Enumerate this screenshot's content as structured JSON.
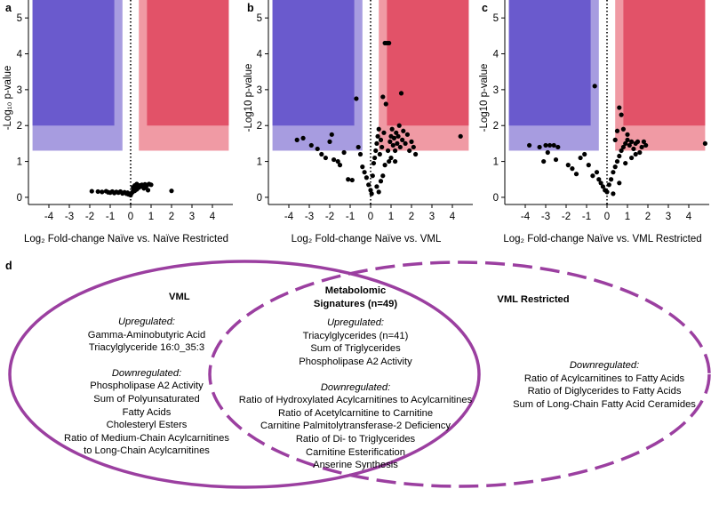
{
  "chart_data": [
    {
      "panel": "a",
      "type": "scatter",
      "title": "",
      "xlabel": "Log₂ Fold-change Naïve vs. Naïve Restricted",
      "ylabel": "-Log₁₀ p-value",
      "xlim": [
        -5,
        5
      ],
      "ylim": [
        -0.2,
        5.5
      ],
      "xticks": [
        "-4",
        "-3",
        "-2",
        "-1",
        "0",
        "1",
        "2",
        "3",
        "4"
      ],
      "yticks": [
        "0",
        "1",
        "2",
        "3",
        "4",
        "5"
      ],
      "colors": {
        "down_dark": "#6a5acd",
        "down_light": "#a79ce0",
        "up_dark": "#e25268",
        "up_light": "#f09aa4"
      },
      "points": [
        [
          -1.9,
          0.17
        ],
        [
          -1.6,
          0.16
        ],
        [
          -1.4,
          0.15
        ],
        [
          -1.2,
          0.17
        ],
        [
          -1.1,
          0.14
        ],
        [
          -1.0,
          0.13
        ],
        [
          -0.9,
          0.16
        ],
        [
          -0.8,
          0.12
        ],
        [
          -0.7,
          0.15
        ],
        [
          -0.6,
          0.13
        ],
        [
          -0.5,
          0.16
        ],
        [
          -0.4,
          0.11
        ],
        [
          -0.3,
          0.14
        ],
        [
          -0.2,
          0.1
        ],
        [
          -0.15,
          0.13
        ],
        [
          -0.1,
          0.08
        ],
        [
          0.0,
          0.06
        ],
        [
          0.05,
          0.12
        ],
        [
          0.1,
          0.15
        ],
        [
          0.15,
          0.2
        ],
        [
          0.2,
          0.18
        ],
        [
          0.25,
          0.25
        ],
        [
          0.3,
          0.22
        ],
        [
          0.35,
          0.3
        ],
        [
          0.4,
          0.27
        ],
        [
          0.45,
          0.33
        ],
        [
          0.5,
          0.3
        ],
        [
          0.55,
          0.35
        ],
        [
          0.6,
          0.32
        ],
        [
          0.7,
          0.36
        ],
        [
          0.8,
          0.34
        ],
        [
          0.9,
          0.37
        ],
        [
          1.0,
          0.35
        ],
        [
          0.3,
          0.37
        ],
        [
          0.2,
          0.33
        ],
        [
          0.12,
          0.28
        ],
        [
          0.65,
          0.25
        ],
        [
          0.75,
          0.3
        ],
        [
          0.85,
          0.2
        ],
        [
          2.0,
          0.18
        ]
      ]
    },
    {
      "panel": "b",
      "type": "scatter",
      "title": "",
      "xlabel": "Log₂ Fold-change Naïve vs. VML",
      "ylabel": "-Log10 p-value",
      "xlim": [
        -5,
        5
      ],
      "ylim": [
        -0.2,
        5.5
      ],
      "xticks": [
        "-4",
        "-3",
        "-2",
        "-1",
        "0",
        "1",
        "2",
        "3",
        "4"
      ],
      "yticks": [
        "0",
        "1",
        "2",
        "3",
        "4",
        "5"
      ],
      "colors": {
        "down_dark": "#6a5acd",
        "down_light": "#a79ce0",
        "up_dark": "#e25268",
        "up_light": "#f09aa4"
      },
      "points": [
        [
          -3.6,
          1.6
        ],
        [
          -3.3,
          1.65
        ],
        [
          -2.9,
          1.45
        ],
        [
          -2.6,
          1.35
        ],
        [
          -2.4,
          1.2
        ],
        [
          -2.2,
          1.1
        ],
        [
          -2.0,
          1.55
        ],
        [
          -1.9,
          1.75
        ],
        [
          -1.8,
          1.05
        ],
        [
          -1.6,
          1.0
        ],
        [
          -1.5,
          0.9
        ],
        [
          -1.3,
          1.25
        ],
        [
          -1.1,
          0.5
        ],
        [
          -0.9,
          0.48
        ],
        [
          -0.7,
          2.75
        ],
        [
          -0.6,
          1.4
        ],
        [
          -0.5,
          1.2
        ],
        [
          -0.4,
          0.85
        ],
        [
          -0.3,
          0.7
        ],
        [
          -0.2,
          0.55
        ],
        [
          -0.1,
          0.35
        ],
        [
          0.0,
          0.2
        ],
        [
          0.05,
          0.1
        ],
        [
          0.1,
          0.6
        ],
        [
          0.15,
          0.95
        ],
        [
          0.2,
          1.1
        ],
        [
          0.25,
          1.3
        ],
        [
          0.3,
          1.5
        ],
        [
          0.35,
          1.7
        ],
        [
          0.4,
          1.9
        ],
        [
          0.45,
          1.2
        ],
        [
          0.5,
          1.6
        ],
        [
          0.55,
          1.4
        ],
        [
          0.6,
          2.8
        ],
        [
          0.65,
          1.8
        ],
        [
          0.7,
          4.3
        ],
        [
          0.8,
          4.3
        ],
        [
          0.9,
          4.3
        ],
        [
          0.75,
          2.6
        ],
        [
          0.85,
          1.3
        ],
        [
          0.95,
          1.55
        ],
        [
          1.0,
          1.7
        ],
        [
          1.05,
          1.9
        ],
        [
          1.1,
          1.45
        ],
        [
          1.15,
          1.65
        ],
        [
          1.2,
          1.3
        ],
        [
          1.25,
          1.8
        ],
        [
          1.3,
          1.5
        ],
        [
          1.35,
          1.7
        ],
        [
          1.4,
          2.0
        ],
        [
          1.45,
          1.4
        ],
        [
          1.5,
          2.9
        ],
        [
          1.55,
          1.6
        ],
        [
          1.6,
          1.85
        ],
        [
          1.7,
          1.5
        ],
        [
          1.8,
          1.75
        ],
        [
          1.9,
          1.3
        ],
        [
          2.0,
          1.55
        ],
        [
          2.1,
          1.4
        ],
        [
          2.2,
          1.2
        ],
        [
          0.3,
          0.3
        ],
        [
          0.5,
          0.45
        ],
        [
          0.7,
          0.9
        ],
        [
          0.9,
          1.0
        ],
        [
          4.4,
          1.7
        ],
        [
          0.4,
          0.15
        ],
        [
          0.6,
          0.6
        ],
        [
          1.0,
          1.1
        ],
        [
          1.2,
          1.0
        ]
      ]
    },
    {
      "panel": "c",
      "type": "scatter",
      "title": "",
      "xlabel": "Log₂ Fold-change Naïve vs. VML Restricted",
      "ylabel": "-Log10 p-value",
      "xlim": [
        -5,
        5
      ],
      "ylim": [
        -0.2,
        5.5
      ],
      "xticks": [
        "-4",
        "-3",
        "-2",
        "-1",
        "0",
        "1",
        "2",
        "3",
        "4"
      ],
      "yticks": [
        "0",
        "1",
        "2",
        "3",
        "4",
        "5"
      ],
      "colors": {
        "down_dark": "#6a5acd",
        "down_light": "#a79ce0",
        "up_dark": "#e25268",
        "up_light": "#f09aa4"
      },
      "points": [
        [
          -3.8,
          1.45
        ],
        [
          -3.3,
          1.4
        ],
        [
          -3.0,
          1.45
        ],
        [
          -2.8,
          1.45
        ],
        [
          -2.6,
          1.45
        ],
        [
          -2.4,
          1.4
        ],
        [
          -2.9,
          1.25
        ],
        [
          -2.5,
          1.05
        ],
        [
          -3.1,
          1.0
        ],
        [
          -1.9,
          0.9
        ],
        [
          -1.7,
          0.8
        ],
        [
          -1.5,
          0.65
        ],
        [
          -1.3,
          1.1
        ],
        [
          -1.1,
          1.2
        ],
        [
          -0.9,
          0.9
        ],
        [
          -0.7,
          0.6
        ],
        [
          -0.6,
          3.1
        ],
        [
          -0.5,
          0.7
        ],
        [
          -0.4,
          0.5
        ],
        [
          -0.3,
          0.4
        ],
        [
          -0.2,
          0.3
        ],
        [
          -0.1,
          0.2
        ],
        [
          0.0,
          0.15
        ],
        [
          0.1,
          0.35
        ],
        [
          0.2,
          0.5
        ],
        [
          0.3,
          0.7
        ],
        [
          0.4,
          0.85
        ],
        [
          0.5,
          1.0
        ],
        [
          0.6,
          1.15
        ],
        [
          0.7,
          1.3
        ],
        [
          0.8,
          1.4
        ],
        [
          0.9,
          1.5
        ],
        [
          1.0,
          1.6
        ],
        [
          1.1,
          1.45
        ],
        [
          1.2,
          1.55
        ],
        [
          1.3,
          1.35
        ],
        [
          1.4,
          1.5
        ],
        [
          1.5,
          1.55
        ],
        [
          1.6,
          1.25
        ],
        [
          1.7,
          1.4
        ],
        [
          1.8,
          1.55
        ],
        [
          1.9,
          1.45
        ],
        [
          0.6,
          2.5
        ],
        [
          0.7,
          2.3
        ],
        [
          0.8,
          1.9
        ],
        [
          1.0,
          1.75
        ],
        [
          0.5,
          1.85
        ],
        [
          0.4,
          1.6
        ],
        [
          0.3,
          0.1
        ],
        [
          0.6,
          0.4
        ],
        [
          4.8,
          1.5
        ],
        [
          1.2,
          1.1
        ],
        [
          0.9,
          0.95
        ],
        [
          1.4,
          1.2
        ]
      ]
    }
  ],
  "panels": {
    "d": "d"
  },
  "venn": {
    "left": {
      "title": "VML",
      "up_head": "Upregulated:",
      "up": [
        "Gamma-Aminobutyric Acid",
        "Triacylglyceride 16:0_35:3"
      ],
      "down_head": "Downregulated:",
      "down": [
        "Phospholipase A2 Activity",
        "Sum of Polyunsaturated",
        "Fatty Acids",
        "Cholesteryl Esters",
        "Ratio of Medium-Chain Acylcarnitines",
        "to Long-Chain Acylcarnitines"
      ]
    },
    "middle": {
      "title": [
        "Metabolomic",
        "Signatures (n=49)"
      ],
      "up_head": "Upregulated:",
      "up": [
        "Triacylglycerides (n=41)",
        "Sum of Triglycerides",
        "Phospholipase A2 Activity"
      ],
      "down_head": "Downregulated:",
      "down": [
        "Ratio of Hydroxylated Acylcarnitines to Acylcarnitines",
        "Ratio of Acetylcarnitine to Carnitine",
        "Carnitine Palmitolytransferase-2 Deficiency",
        "Ratio of Di- to Triglycerides",
        "Carnitine Esterification",
        "Anserine Synthesis"
      ]
    },
    "right": {
      "title": "VML Restricted",
      "down_head": "Downregulated:",
      "down": [
        "Ratio of Acylcarnitines to Fatty Acids",
        "Ratio of Diglycerides to Fatty Acids",
        "Sum of Long-Chain Fatty Acid Ceramides"
      ]
    },
    "color": "#9b3fa0"
  }
}
